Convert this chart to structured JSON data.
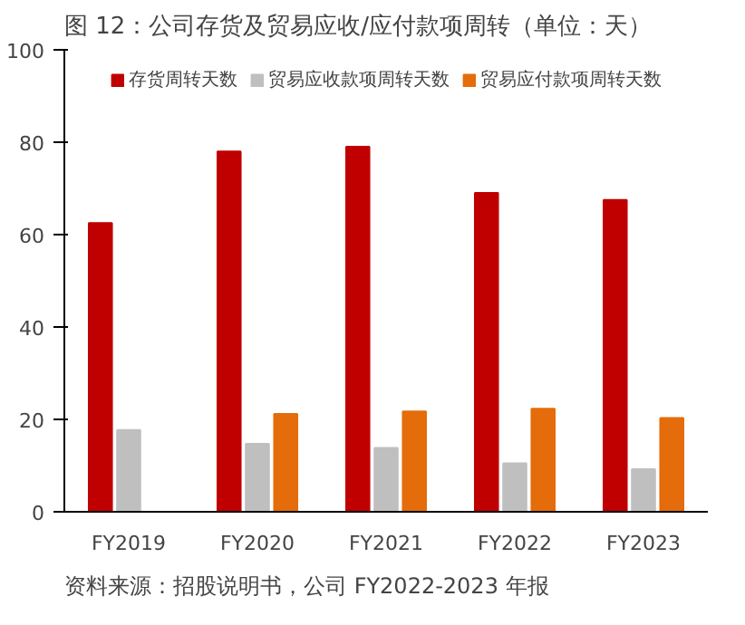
{
  "chart_data": {
    "type": "bar",
    "title": "图 12：公司存货及贸易应收/应付款项周转（单位：天）",
    "categories": [
      "FY2019",
      "FY2020",
      "FY2021",
      "FY2022",
      "FY2023"
    ],
    "series": [
      {
        "name": "存货周转天数",
        "color": "#c00000",
        "values": [
          62.5,
          78,
          79,
          69,
          67.5
        ]
      },
      {
        "name": "贸易应收款项周转天数",
        "color": "#bfbfbf",
        "values": [
          17.7,
          14.7,
          13.8,
          10.5,
          9.2
        ]
      },
      {
        "name": "贸易应付款项周转天数",
        "color": "#e46c0a",
        "values": [
          null,
          21.2,
          21.7,
          22.3,
          20.3
        ]
      }
    ],
    "ylim": [
      0,
      100
    ],
    "yticks": [
      0,
      20,
      40,
      60,
      80,
      100
    ],
    "grid": false,
    "legend": "top",
    "annotations": [
      "资料来源：招股说明书，公司 FY2022-2023 年报"
    ]
  }
}
